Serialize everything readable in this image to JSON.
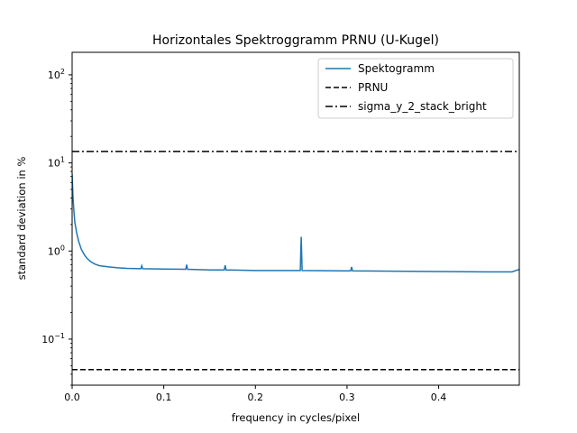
{
  "chart_data": {
    "type": "line",
    "title": "Horizontales Spektroggramm PRNU (U-Kugel)",
    "xlabel": "frequency in cycles/pixel",
    "ylabel": "standard deviation in %",
    "xlim": [
      0,
      0.488
    ],
    "ylim": [
      0.03,
      180
    ],
    "yscale": "log",
    "xticks": [
      0.0,
      0.1,
      0.2,
      0.3,
      0.4
    ],
    "xtick_labels": [
      "0.0",
      "0.1",
      "0.2",
      "0.3",
      "0.4"
    ],
    "yticks": [
      {
        "value": 0.1,
        "base": "10",
        "exp": "−1"
      },
      {
        "value": 1,
        "base": "10",
        "exp": "0"
      },
      {
        "value": 10,
        "base": "10",
        "exp": "1"
      },
      {
        "value": 100,
        "base": "10",
        "exp": "2"
      }
    ],
    "legend_position": "top-right",
    "series": [
      {
        "name": "Spektogramm",
        "style": "solid",
        "color": "#1f77b4",
        "x": [
          0.0,
          0.001,
          0.002,
          0.003,
          0.005,
          0.007,
          0.01,
          0.013,
          0.016,
          0.02,
          0.025,
          0.03,
          0.04,
          0.05,
          0.06,
          0.075,
          0.076,
          0.077,
          0.1,
          0.124,
          0.125,
          0.126,
          0.15,
          0.166,
          0.167,
          0.168,
          0.2,
          0.249,
          0.25,
          0.251,
          0.3,
          0.304,
          0.305,
          0.306,
          0.35,
          0.4,
          0.45,
          0.48,
          0.488
        ],
        "y": [
          7.5,
          4.0,
          2.8,
          2.1,
          1.6,
          1.3,
          1.05,
          0.92,
          0.83,
          0.76,
          0.71,
          0.68,
          0.66,
          0.645,
          0.635,
          0.63,
          0.68,
          0.63,
          0.625,
          0.62,
          0.7,
          0.62,
          0.61,
          0.61,
          0.69,
          0.61,
          0.6,
          0.6,
          1.45,
          0.6,
          0.595,
          0.595,
          0.66,
          0.595,
          0.59,
          0.585,
          0.58,
          0.58,
          0.62
        ]
      },
      {
        "name": "PRNU",
        "style": "dashed",
        "color": "#000000",
        "x": [
          0.0,
          0.488
        ],
        "y": [
          0.045,
          0.045
        ]
      },
      {
        "name": "sigma_y_2_stack_bright",
        "style": "dashdot",
        "color": "#000000",
        "x": [
          0.0,
          0.488
        ],
        "y": [
          13.5,
          13.5
        ]
      }
    ]
  }
}
